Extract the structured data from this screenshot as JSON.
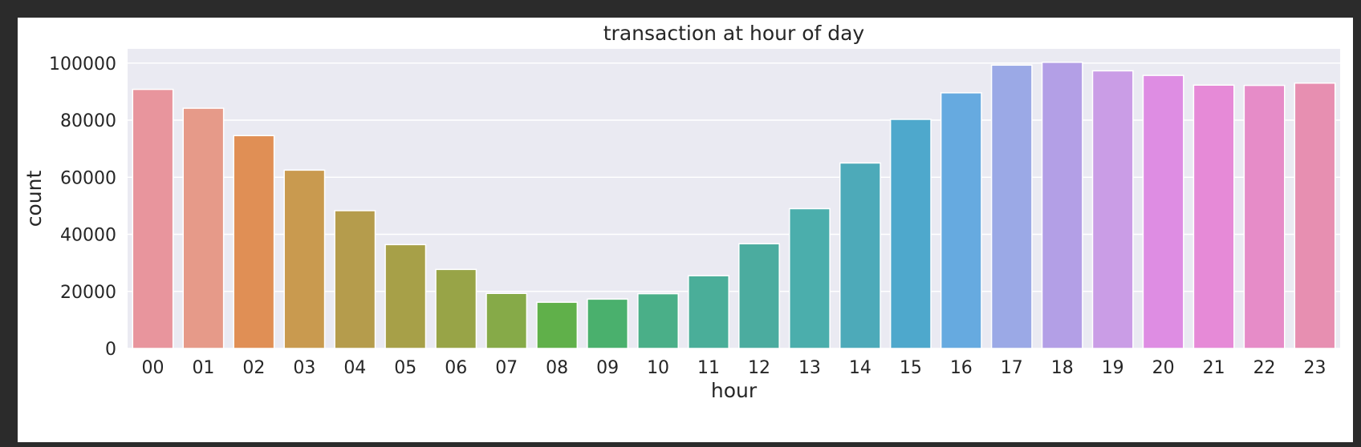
{
  "chart_data": {
    "type": "bar",
    "title": "transaction at hour of day",
    "xlabel": "hour",
    "ylabel": "count",
    "categories": [
      "00",
      "01",
      "02",
      "03",
      "04",
      "05",
      "06",
      "07",
      "08",
      "09",
      "10",
      "11",
      "12",
      "13",
      "14",
      "15",
      "16",
      "17",
      "18",
      "19",
      "20",
      "21",
      "22",
      "23"
    ],
    "values": [
      90800,
      84200,
      74600,
      62500,
      48300,
      36400,
      27700,
      19300,
      16200,
      17300,
      19200,
      25500,
      36700,
      49000,
      65000,
      80300,
      89600,
      99300,
      100300,
      97300,
      95700,
      92300,
      92200,
      93000
    ],
    "ylim": [
      0,
      105000
    ],
    "yticks": [
      0,
      20000,
      40000,
      60000,
      80000,
      100000
    ],
    "grid": true,
    "legend": "none",
    "background_color": "#eaeaf2",
    "grid_color": "#ffffff",
    "colors": [
      "#e8959d",
      "#e69a89",
      "#e08f55",
      "#c99a4f",
      "#b59c4c",
      "#a7a048",
      "#98a447",
      "#86aa48",
      "#60b04a",
      "#4ab06d",
      "#4aaf88",
      "#4aae99",
      "#4bac9f",
      "#4baeac",
      "#4daab9",
      "#4ea8cc",
      "#66aae0",
      "#9ba9e6",
      "#b39fe6",
      "#ca9de6",
      "#de8de3",
      "#e68ad7",
      "#e68cc8",
      "#e78fb1"
    ]
  }
}
